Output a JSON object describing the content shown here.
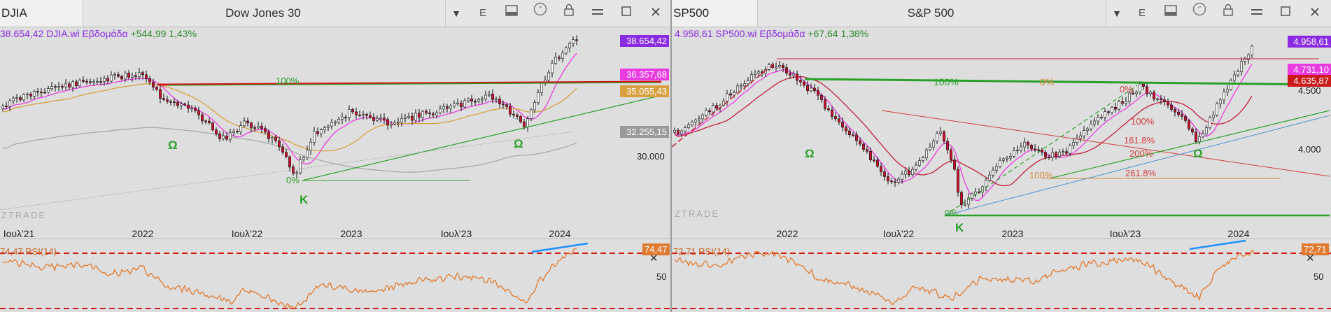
{
  "colors": {
    "purple": "#8a2be2",
    "magenta": "#e83ce0",
    "red": "#cc1a1a",
    "gold": "#d8a040",
    "grey": "#9a9a9a",
    "green": "#2aa02a",
    "orange": "#e07a30",
    "blue": "#1e90ff",
    "fibred": "#d23c3c"
  },
  "toolbar_icons": [
    "E",
    "panel-icon",
    "quote-icon",
    "lock-icon",
    "minimize-icon",
    "maximize-icon",
    "close-icon"
  ],
  "panels": [
    {
      "symbol": "DJIA",
      "title": "Dow Jones 30",
      "info": {
        "price": "38.654,42",
        "name": "DJIA.wi Εβδομάδα",
        "change": "+544,99 1,43%"
      },
      "tags": [
        {
          "text": "38.654,42",
          "color": "#8a2be2"
        },
        {
          "text": "36.357,68",
          "color": "#e83ce0"
        },
        {
          "text": "35.055,43",
          "color": "#d8a040"
        },
        {
          "text": "32.255,15",
          "color": "#9a9a9a"
        }
      ],
      "price_axis": [
        "30.000"
      ],
      "x_labels": [
        "Ιουλ'21",
        "2022",
        "Ιουλ'22",
        "2023",
        "Ιουλ'23",
        "2024"
      ],
      "annotations": {
        "pct": "100%",
        "zero": "0%",
        "omega1": "Ω",
        "omega2": "Ω",
        "kappa": "Κ"
      },
      "watermark": "ZTRADE",
      "rsi": {
        "label": "74,47 RSI(14)",
        "tag": "74,47",
        "level": "50"
      }
    },
    {
      "symbol": "SP500",
      "title": "S&P 500",
      "info": {
        "price": "4.958,61",
        "name": "SP500.wi Εβδομάδα",
        "change": "+67,64 1,38%"
      },
      "tags": [
        {
          "text": "4.958,61",
          "color": "#8a2be2"
        },
        {
          "text": "4.731,10",
          "color": "#e83ce0"
        },
        {
          "text": "4.635,87",
          "color": "#cc1a1a"
        }
      ],
      "price_axis": [
        "4.500",
        "4.000"
      ],
      "x_labels": [
        "2022",
        "Ιουλ'22",
        "2023",
        "Ιουλ'23",
        "2024"
      ],
      "annotations": {
        "pct100a": "100%",
        "pct0a": "0%",
        "pct0b": "0%",
        "pct100b": "100%",
        "fib161": "161.8%",
        "fib200": "200%",
        "fib261": "261.8%",
        "pct100c": "100%",
        "zero": "0%",
        "omega1": "Ω",
        "omega2": "Ω",
        "kappa": "Κ"
      },
      "watermark": "ZTRADE",
      "rsi": {
        "label": "72,71 RSI(14)",
        "tag": "72,71",
        "level": "50"
      }
    }
  ],
  "chart_data": [
    {
      "type": "line",
      "title": "Dow Jones 30",
      "timeframe": "Εβδομάδα",
      "x": [
        "Ιουλ'21",
        "2022",
        "Ιουλ'22",
        "2023",
        "Ιουλ'23",
        "2024"
      ],
      "series": [
        {
          "name": "DJIA.wi",
          "values": [
            34800,
            36300,
            31500,
            33200,
            35300,
            37700
          ]
        }
      ],
      "last_values": {
        "price": 38654.42,
        "ma_magenta": 36357.68,
        "ma_gold": 35055.43,
        "ma_grey": 32255.15
      },
      "y_tick": 30000,
      "rsi": {
        "name": "RSI(14)",
        "last": 74.47,
        "level": 50
      },
      "legend": "none",
      "grid": false
    },
    {
      "type": "line",
      "title": "S&P 500",
      "timeframe": "Εβδομάδα",
      "x": [
        "2022",
        "Ιουλ'22",
        "2023",
        "Ιουλ'23",
        "2024"
      ],
      "series": [
        {
          "name": "SP500.wi",
          "values": [
            4770,
            3900,
            3840,
            4520,
            4770
          ]
        }
      ],
      "last_values": {
        "price": 4958.61,
        "ma_magenta": 4731.1,
        "ma_red": 4635.87
      },
      "y_ticks": [
        4500,
        4000
      ],
      "rsi": {
        "name": "RSI(14)",
        "last": 72.71,
        "level": 50
      },
      "legend": "none",
      "grid": false
    }
  ]
}
